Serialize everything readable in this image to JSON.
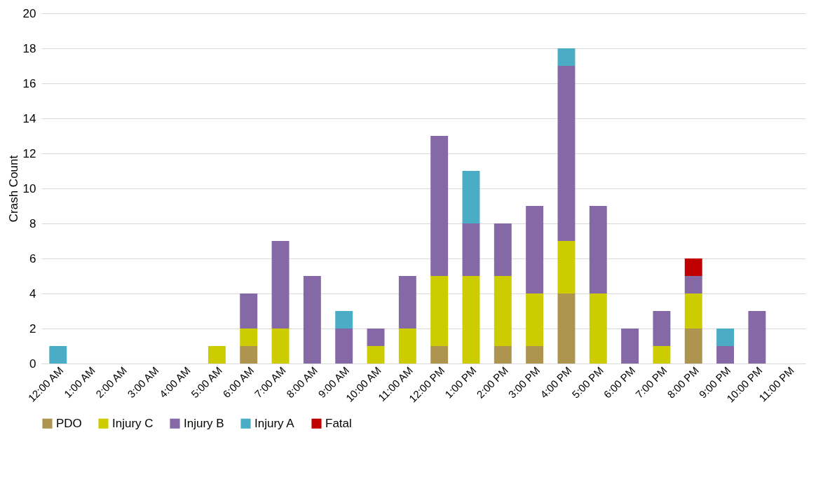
{
  "chart_data": {
    "type": "bar",
    "stacked": true,
    "ylabel": "Crash Count",
    "ylim": [
      0,
      20
    ],
    "yticks": [
      0,
      2,
      4,
      6,
      8,
      10,
      12,
      14,
      16,
      18,
      20
    ],
    "grid": "y",
    "legend": "bottom",
    "categories": [
      "12:00 AM",
      "1:00 AM",
      "2:00 AM",
      "3:00 AM",
      "4:00 AM",
      "5:00 AM",
      "6:00 AM",
      "7:00 AM",
      "8:00 AM",
      "9:00 AM",
      "10:00 AM",
      "11:00 AM",
      "12:00 PM",
      "1:00 PM",
      "2:00 PM",
      "3:00 PM",
      "4:00 PM",
      "5:00 PM",
      "6:00 PM",
      "7:00 PM",
      "8:00 PM",
      "9:00 PM",
      "10:00 PM",
      "11:00 PM"
    ],
    "series": [
      {
        "name": "PDO",
        "color": "#ad9550",
        "values": [
          0,
          0,
          0,
          0,
          0,
          0,
          1,
          0,
          0,
          0,
          0,
          0,
          1,
          0,
          1,
          1,
          4,
          0,
          0,
          0,
          2,
          0,
          0,
          0
        ]
      },
      {
        "name": "Injury C",
        "color": "#cccc00",
        "values": [
          0,
          0,
          0,
          0,
          0,
          1,
          1,
          2,
          0,
          0,
          1,
          2,
          4,
          5,
          4,
          3,
          3,
          4,
          0,
          1,
          2,
          0,
          0,
          0
        ]
      },
      {
        "name": "Injury B",
        "color": "#8569a6",
        "values": [
          0,
          0,
          0,
          0,
          0,
          0,
          2,
          5,
          5,
          2,
          1,
          3,
          8,
          3,
          3,
          5,
          10,
          5,
          2,
          2,
          1,
          1,
          3,
          0
        ]
      },
      {
        "name": "Injury A",
        "color": "#4bacc6",
        "values": [
          1,
          0,
          0,
          0,
          0,
          0,
          0,
          0,
          0,
          1,
          0,
          0,
          0,
          3,
          0,
          0,
          1,
          0,
          0,
          0,
          0,
          1,
          0,
          0
        ]
      },
      {
        "name": "Fatal",
        "color": "#c00000",
        "values": [
          0,
          0,
          0,
          0,
          0,
          0,
          0,
          0,
          0,
          0,
          0,
          0,
          0,
          0,
          0,
          0,
          0,
          0,
          0,
          0,
          1,
          0,
          0,
          0
        ]
      }
    ]
  }
}
